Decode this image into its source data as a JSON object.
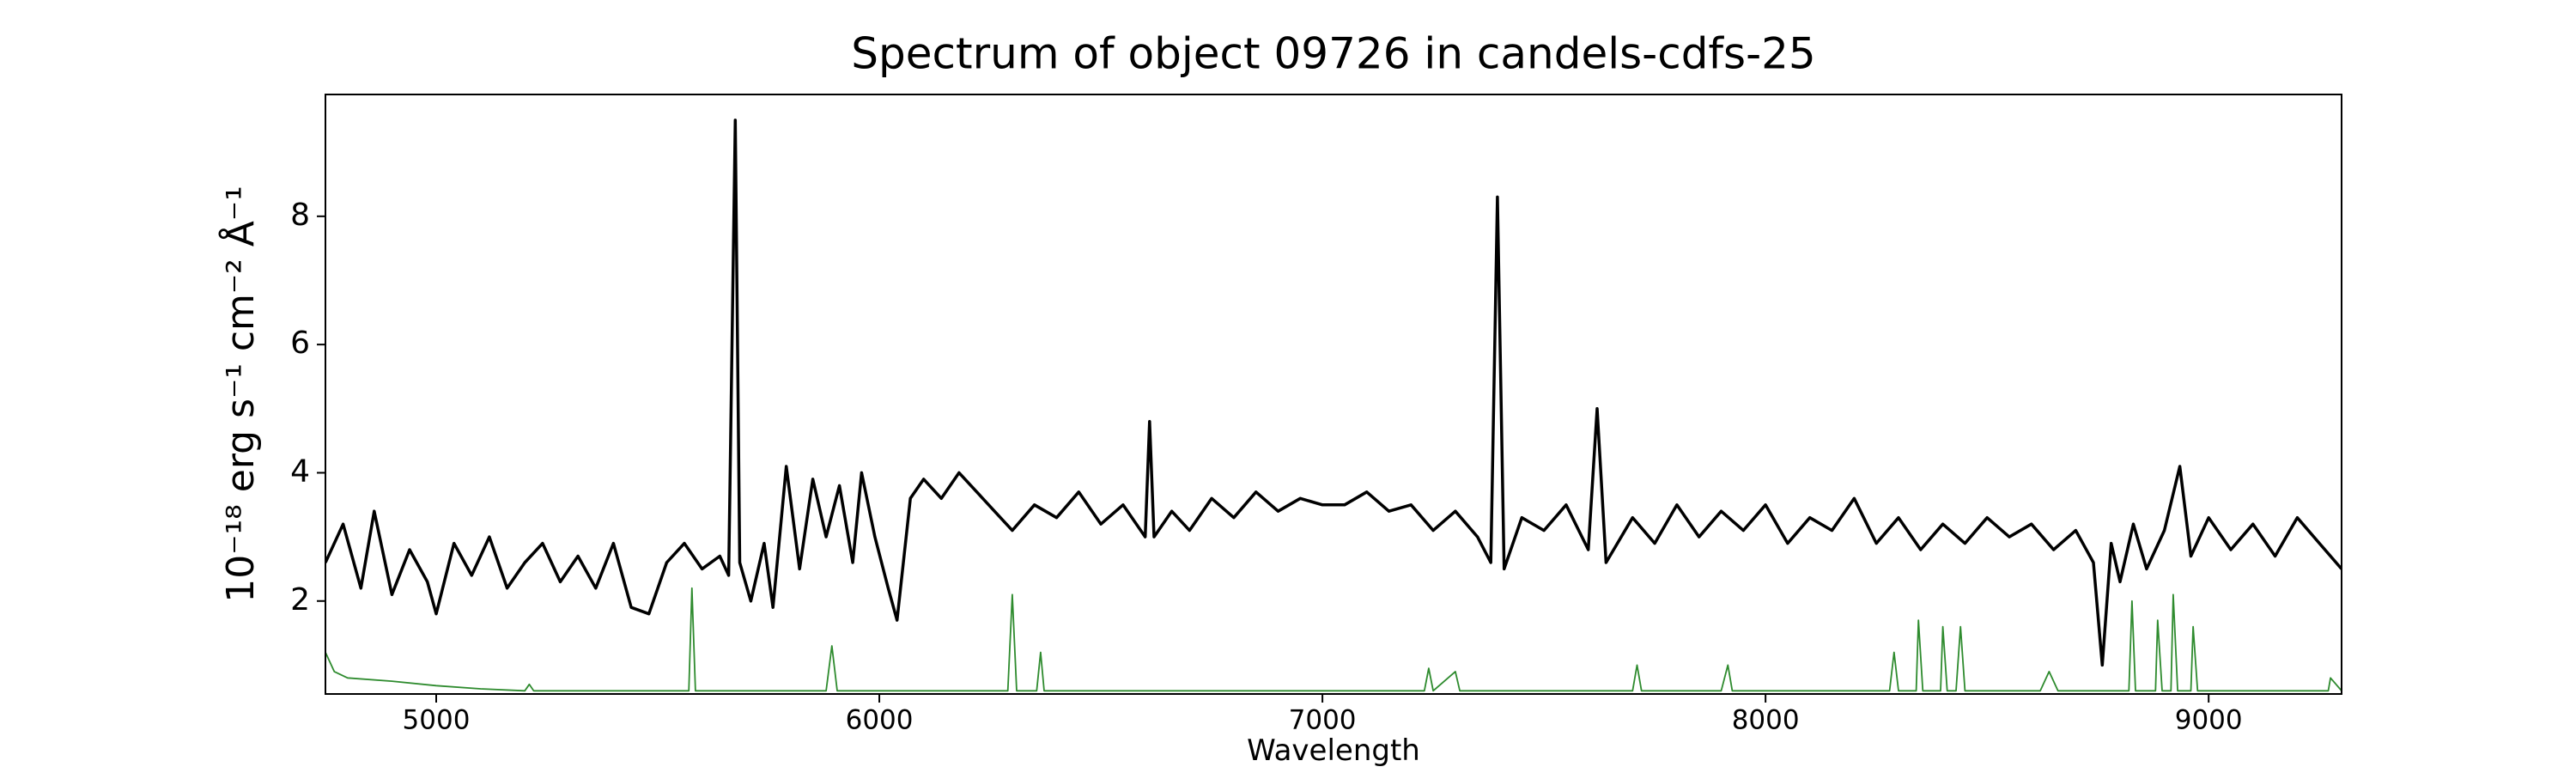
{
  "chart_data": {
    "type": "line",
    "title": "Spectrum of object 09726 in candels-cdfs-25",
    "xlabel": "Wavelength",
    "ylabel": "10⁻¹⁸ erg s⁻¹ cm⁻² Å⁻¹",
    "xlim": [
      4750,
      9300
    ],
    "ylim": [
      0.55,
      9.9
    ],
    "xticks": [
      5000,
      6000,
      7000,
      8000,
      9000
    ],
    "yticks": [
      2,
      4,
      6,
      8
    ],
    "series": [
      {
        "color": "#000000",
        "x": [
          4750,
          4790,
          4830,
          4860,
          4900,
          4940,
          4980,
          5000,
          5040,
          5080,
          5120,
          5160,
          5200,
          5240,
          5280,
          5320,
          5360,
          5400,
          5440,
          5480,
          5520,
          5560,
          5600,
          5640,
          5660,
          5675,
          5685,
          5710,
          5740,
          5760,
          5790,
          5820,
          5850,
          5880,
          5910,
          5940,
          5960,
          5990,
          6020,
          6040,
          6070,
          6100,
          6140,
          6180,
          6220,
          6260,
          6300,
          6350,
          6400,
          6450,
          6500,
          6550,
          6600,
          6610,
          6620,
          6660,
          6700,
          6750,
          6800,
          6850,
          6900,
          6950,
          7000,
          7050,
          7100,
          7150,
          7200,
          7250,
          7300,
          7350,
          7380,
          7395,
          7410,
          7450,
          7500,
          7550,
          7600,
          7620,
          7640,
          7700,
          7750,
          7800,
          7850,
          7900,
          7950,
          8000,
          8050,
          8100,
          8150,
          8200,
          8250,
          8300,
          8350,
          8400,
          8450,
          8500,
          8550,
          8600,
          8650,
          8700,
          8740,
          8760,
          8780,
          8800,
          8830,
          8860,
          8900,
          8935,
          8960,
          9000,
          9050,
          9100,
          9150,
          9200,
          9250,
          9300
        ],
        "values": [
          2.6,
          3.2,
          2.2,
          3.4,
          2.1,
          2.8,
          2.3,
          1.8,
          2.9,
          2.4,
          3.0,
          2.2,
          2.6,
          2.9,
          2.3,
          2.7,
          2.2,
          2.9,
          1.9,
          1.8,
          2.6,
          2.9,
          2.5,
          2.7,
          2.4,
          9.5,
          2.6,
          2.0,
          2.9,
          1.9,
          4.1,
          2.5,
          3.9,
          3.0,
          3.8,
          2.6,
          4.0,
          3.0,
          2.2,
          1.7,
          3.6,
          3.9,
          3.6,
          4.0,
          3.7,
          3.4,
          3.1,
          3.5,
          3.3,
          3.7,
          3.2,
          3.5,
          3.0,
          4.8,
          3.0,
          3.4,
          3.1,
          3.6,
          3.3,
          3.7,
          3.4,
          3.6,
          3.5,
          3.5,
          3.7,
          3.4,
          3.5,
          3.1,
          3.4,
          3.0,
          2.6,
          8.3,
          2.5,
          3.3,
          3.1,
          3.5,
          2.8,
          5.0,
          2.6,
          3.3,
          2.9,
          3.5,
          3.0,
          3.4,
          3.1,
          3.5,
          2.9,
          3.3,
          3.1,
          3.6,
          2.9,
          3.3,
          2.8,
          3.2,
          2.9,
          3.3,
          3.0,
          3.2,
          2.8,
          3.1,
          2.6,
          1.0,
          2.9,
          2.3,
          3.2,
          2.5,
          3.1,
          4.1,
          2.7,
          3.3,
          2.8,
          3.2,
          2.7,
          3.3,
          2.9,
          2.5
        ]
      },
      {
        "color": "#2e8b2e",
        "x": [
          4750,
          4770,
          4800,
          4900,
          5000,
          5100,
          5200,
          5210,
          5220,
          5570,
          5577,
          5585,
          5880,
          5893,
          5905,
          6290,
          6300,
          6310,
          6355,
          6364,
          6372,
          7230,
          7240,
          7250,
          7300,
          7310,
          7700,
          7710,
          7720,
          7900,
          7915,
          7925,
          8280,
          8290,
          8300,
          8340,
          8345,
          8355,
          8395,
          8400,
          8410,
          8430,
          8440,
          8450,
          8620,
          8640,
          8660,
          8820,
          8827,
          8835,
          8880,
          8885,
          8895,
          8915,
          8920,
          8930,
          8960,
          8965,
          8975,
          9270,
          9275,
          9300
        ],
        "values": [
          1.2,
          0.9,
          0.8,
          0.75,
          0.68,
          0.63,
          0.6,
          0.7,
          0.6,
          0.6,
          2.2,
          0.6,
          0.6,
          1.3,
          0.6,
          0.6,
          2.1,
          0.6,
          0.6,
          1.2,
          0.6,
          0.6,
          0.95,
          0.6,
          0.9,
          0.6,
          0.6,
          1.0,
          0.6,
          0.6,
          1.0,
          0.6,
          0.6,
          1.2,
          0.6,
          0.6,
          1.7,
          0.6,
          0.6,
          1.6,
          0.6,
          0.6,
          1.6,
          0.6,
          0.6,
          0.9,
          0.6,
          0.6,
          2.0,
          0.6,
          0.6,
          1.7,
          0.6,
          0.6,
          2.1,
          0.6,
          0.6,
          1.6,
          0.6,
          0.6,
          0.8,
          0.6
        ]
      }
    ]
  }
}
